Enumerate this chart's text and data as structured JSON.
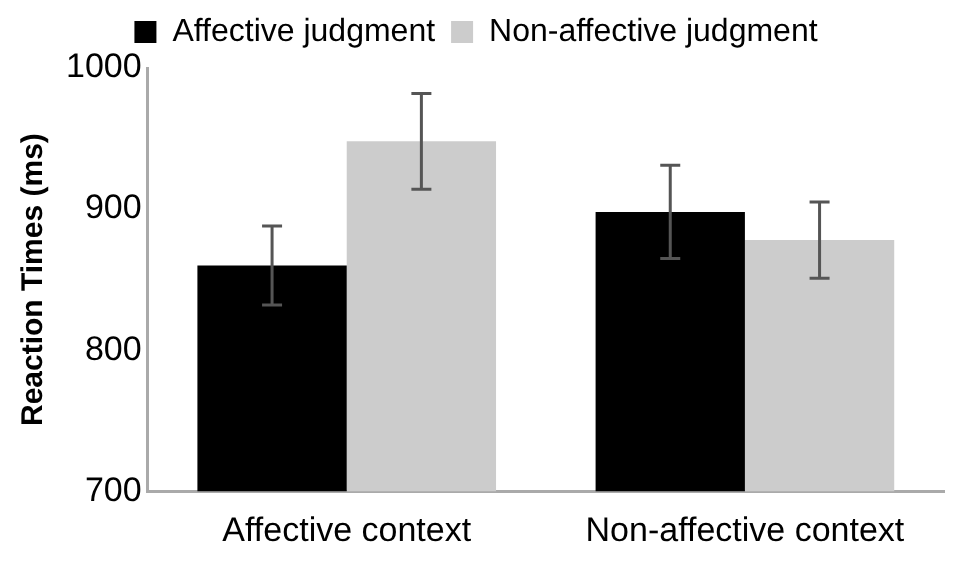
{
  "chart_data": {
    "type": "bar",
    "ylabel": "Reaction Times (ms)",
    "categories": [
      "Affective context",
      "Non-affective context"
    ],
    "series": [
      {
        "name": "Affective judgment",
        "color": "#000000",
        "values": [
          860,
          898
        ],
        "errors": [
          28,
          33
        ]
      },
      {
        "name": "Non-affective judgment",
        "color": "#cccccc",
        "values": [
          948,
          878
        ],
        "errors": [
          34,
          27
        ]
      }
    ],
    "ylim": [
      700,
      1000
    ],
    "yticks": [
      700,
      800,
      900,
      1000
    ],
    "grid": false,
    "legend": "top"
  }
}
